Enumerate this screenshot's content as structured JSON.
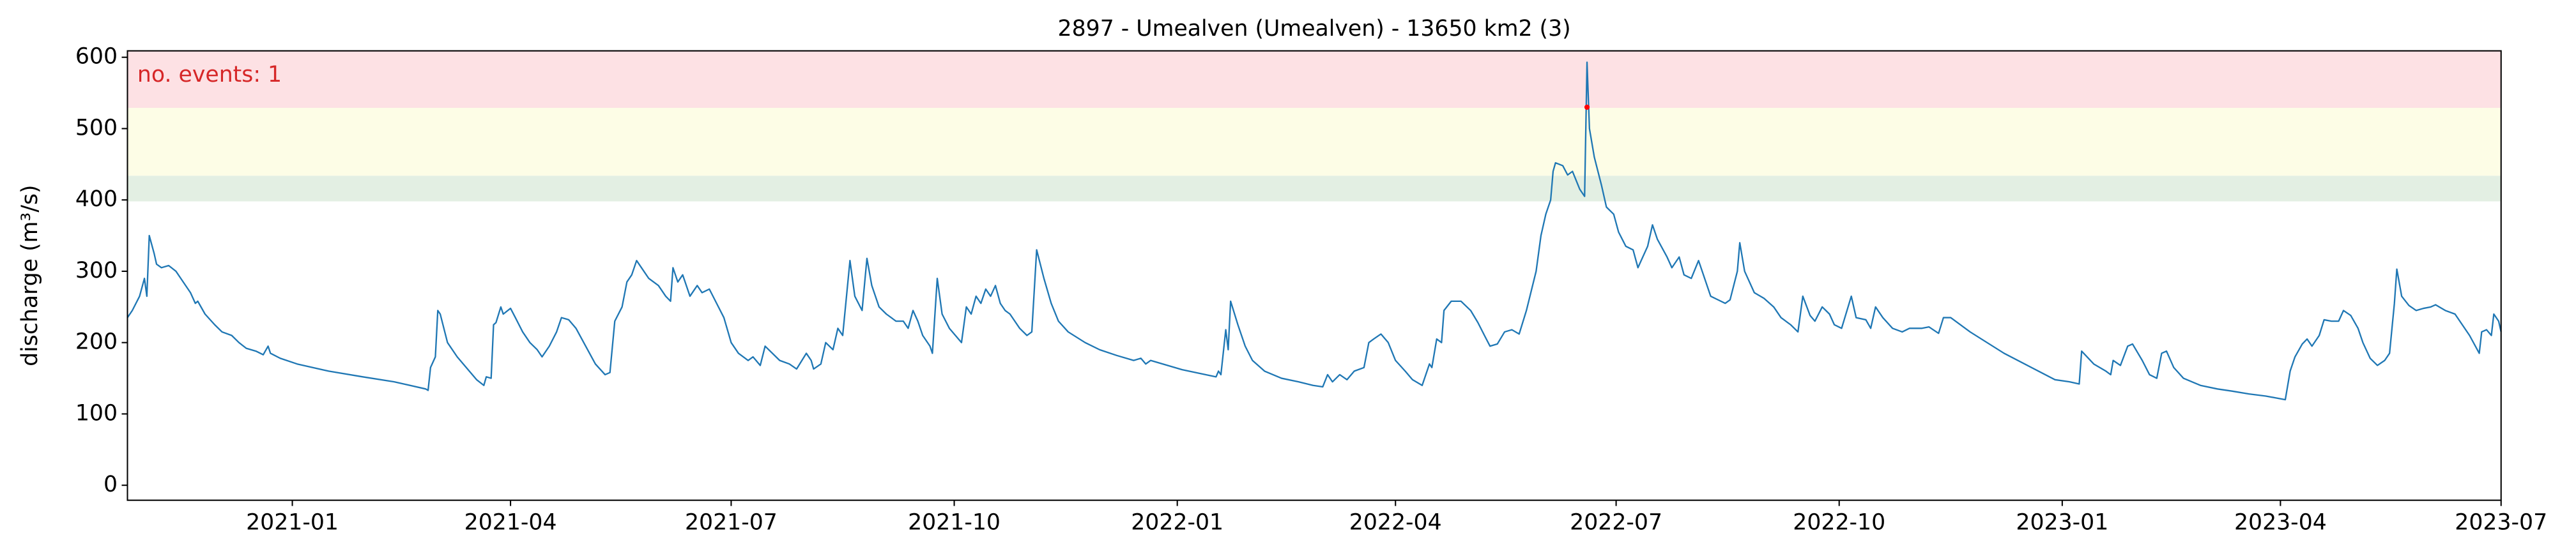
{
  "chart_data": {
    "type": "line",
    "title": "2897 - Umealven (Umealven) - 13650 km2 (3)",
    "ylabel": "discharge (m³/s)",
    "annotation": "no. events: 1",
    "annotation_color": "#d62728",
    "color": "#1f77b4",
    "xlim": [
      18560,
      19539
    ],
    "ylim": [
      -21,
      609
    ],
    "yticks": [
      0,
      100,
      200,
      300,
      400,
      500,
      600
    ],
    "xticks": [
      {
        "value": 18628,
        "label": "2021-01"
      },
      {
        "value": 18718,
        "label": "2021-04"
      },
      {
        "value": 18809,
        "label": "2021-07"
      },
      {
        "value": 18901,
        "label": "2021-10"
      },
      {
        "value": 18993,
        "label": "2022-01"
      },
      {
        "value": 19083,
        "label": "2022-04"
      },
      {
        "value": 19174,
        "label": "2022-07"
      },
      {
        "value": 19266,
        "label": "2022-10"
      },
      {
        "value": 19358,
        "label": "2023-01"
      },
      {
        "value": 19448,
        "label": "2023-04"
      },
      {
        "value": 19539,
        "label": "2023-07"
      }
    ],
    "bands": [
      {
        "from": 398,
        "to": 434,
        "color": "#e3efe3"
      },
      {
        "from": 434,
        "to": 529,
        "color": "#fdfde6"
      },
      {
        "from": 529,
        "to": 609,
        "color": "#fde1e4"
      }
    ],
    "events": [
      {
        "x": 19162,
        "value": 530,
        "color": "#ff0000"
      }
    ],
    "x": [
      18560,
      18562,
      18565,
      18567,
      18568,
      18569,
      18571,
      18572,
      18574,
      18577,
      18580,
      18582,
      18586,
      18588,
      18589,
      18592,
      18596,
      18599,
      18603,
      18606,
      18609,
      18613,
      18616,
      18618,
      18619,
      18623,
      18630,
      18643,
      18657,
      18670,
      18683,
      18684,
      18685,
      18687,
      18688,
      18689,
      18692,
      18696,
      18701,
      18704,
      18707,
      18708,
      18710,
      18711,
      18712,
      18714,
      18715,
      18718,
      18720,
      18723,
      18726,
      18729,
      18731,
      18734,
      18737,
      18739,
      18742,
      18745,
      18749,
      18753,
      18757,
      18759,
      18761,
      18764,
      18766,
      18768,
      18770,
      18773,
      18775,
      18779,
      18782,
      18784,
      18785,
      18787,
      18789,
      18792,
      18795,
      18797,
      18800,
      18803,
      18806,
      18809,
      18812,
      18816,
      18818,
      18821,
      18823,
      18826,
      18829,
      18833,
      18836,
      18840,
      18842,
      18843,
      18846,
      18848,
      18851,
      18853,
      18855,
      18858,
      18860,
      18863,
      18865,
      18867,
      18870,
      18873,
      18877,
      18880,
      18882,
      18884,
      18886,
      18888,
      18891,
      18892,
      18894,
      18896,
      18899,
      18902,
      18904,
      18906,
      18908,
      18910,
      18912,
      18914,
      18916,
      18918,
      18920,
      18922,
      18924,
      18928,
      18931,
      18933,
      18935,
      18938,
      18941,
      18944,
      18948,
      18955,
      18961,
      18968,
      18975,
      18978,
      18980,
      18982,
      18995,
      19009,
      19010,
      19011,
      19013,
      19014,
      19015,
      19018,
      19021,
      19024,
      19029,
      19036,
      19043,
      19049,
      19053,
      19055,
      19057,
      19060,
      19063,
      19066,
      19070,
      19072,
      19074,
      19077,
      19080,
      19083,
      19087,
      19090,
      19094,
      19097,
      19098,
      19100,
      19102,
      19103,
      19106,
      19110,
      19114,
      19117,
      19120,
      19122,
      19125,
      19128,
      19131,
      19134,
      19137,
      19141,
      19143,
      19145,
      19147,
      19148,
      19149,
      19152,
      19154,
      19156,
      19159,
      19161,
      19162,
      19163,
      19165,
      19168,
      19170,
      19173,
      19175,
      19178,
      19181,
      19183,
      19187,
      19189,
      19191,
      19195,
      19197,
      19200,
      19202,
      19205,
      19208,
      19210,
      19213,
      19216,
      19219,
      19221,
      19224,
      19225,
      19227,
      19231,
      19235,
      19239,
      19242,
      19246,
      19249,
      19251,
      19254,
      19256,
      19259,
      19262,
      19264,
      19267,
      19271,
      19273,
      19277,
      19279,
      19281,
      19284,
      19288,
      19292,
      19295,
      19300,
      19303,
      19307,
      19309,
      19312,
      19320,
      19334,
      19355,
      19361,
      19365,
      19366,
      19371,
      19376,
      19378,
      19379,
      19382,
      19385,
      19387,
      19391,
      19394,
      19397,
      19399,
      19401,
      19404,
      19408,
      19415,
      19422,
      19428,
      19435,
      19442,
      19450,
      19452,
      19454,
      19457,
      19459,
      19461,
      19464,
      19466,
      19469,
      19472,
      19474,
      19477,
      19480,
      19482,
      19485,
      19488,
      19491,
      19493,
      19495,
      19496,
      19498,
      19501,
      19504,
      19507,
      19510,
      19512,
      19516,
      19520,
      19523,
      19526,
      19530,
      19531,
      19533,
      19535,
      19536,
      19538,
      19539
    ],
    "values": [
      235,
      245,
      265,
      290,
      265,
      350,
      325,
      310,
      305,
      308,
      300,
      290,
      270,
      255,
      258,
      240,
      225,
      215,
      210,
      200,
      192,
      188,
      183,
      195,
      185,
      178,
      170,
      160,
      152,
      145,
      135,
      133,
      165,
      180,
      245,
      240,
      200,
      180,
      160,
      148,
      140,
      152,
      150,
      225,
      228,
      250,
      240,
      248,
      235,
      215,
      200,
      190,
      180,
      195,
      215,
      235,
      232,
      220,
      195,
      170,
      155,
      158,
      230,
      250,
      285,
      295,
      315,
      300,
      290,
      280,
      265,
      258,
      305,
      285,
      295,
      265,
      280,
      270,
      275,
      255,
      235,
      200,
      185,
      175,
      180,
      168,
      195,
      185,
      175,
      170,
      163,
      185,
      175,
      163,
      170,
      200,
      190,
      220,
      210,
      315,
      265,
      245,
      318,
      280,
      250,
      240,
      230,
      230,
      220,
      245,
      230,
      210,
      195,
      185,
      290,
      240,
      220,
      208,
      200,
      250,
      240,
      265,
      255,
      275,
      265,
      280,
      255,
      245,
      240,
      220,
      210,
      215,
      330,
      290,
      255,
      230,
      215,
      200,
      190,
      182,
      175,
      178,
      170,
      175,
      162,
      152,
      160,
      155,
      218,
      190,
      258,
      225,
      195,
      175,
      160,
      150,
      145,
      140,
      138,
      155,
      145,
      155,
      148,
      160,
      165,
      200,
      205,
      212,
      200,
      175,
      160,
      148,
      140,
      170,
      165,
      205,
      200,
      245,
      258,
      258,
      245,
      228,
      208,
      195,
      198,
      215,
      218,
      212,
      245,
      300,
      350,
      380,
      400,
      440,
      452,
      448,
      435,
      440,
      415,
      405,
      593,
      500,
      460,
      420,
      390,
      380,
      355,
      335,
      330,
      305,
      335,
      365,
      345,
      320,
      305,
      320,
      295,
      290,
      315,
      295,
      265,
      260,
      255,
      260,
      300,
      340,
      300,
      270,
      262,
      250,
      235,
      225,
      215,
      265,
      238,
      230,
      250,
      240,
      225,
      220,
      265,
      235,
      232,
      220,
      250,
      235,
      220,
      215,
      220,
      220,
      222,
      213,
      235,
      235,
      215,
      185,
      148,
      145,
      142,
      188,
      170,
      160,
      155,
      175,
      168,
      195,
      198,
      175,
      155,
      150,
      185,
      188,
      165,
      150,
      140,
      135,
      132,
      128,
      125,
      120,
      160,
      180,
      198,
      205,
      195,
      210,
      232,
      230,
      230,
      245,
      238,
      220,
      200,
      178,
      168,
      175,
      185,
      255,
      303,
      265,
      252,
      245,
      248,
      250,
      253,
      245,
      240,
      225,
      210,
      185,
      215,
      218,
      210,
      240,
      230,
      215
    ]
  }
}
